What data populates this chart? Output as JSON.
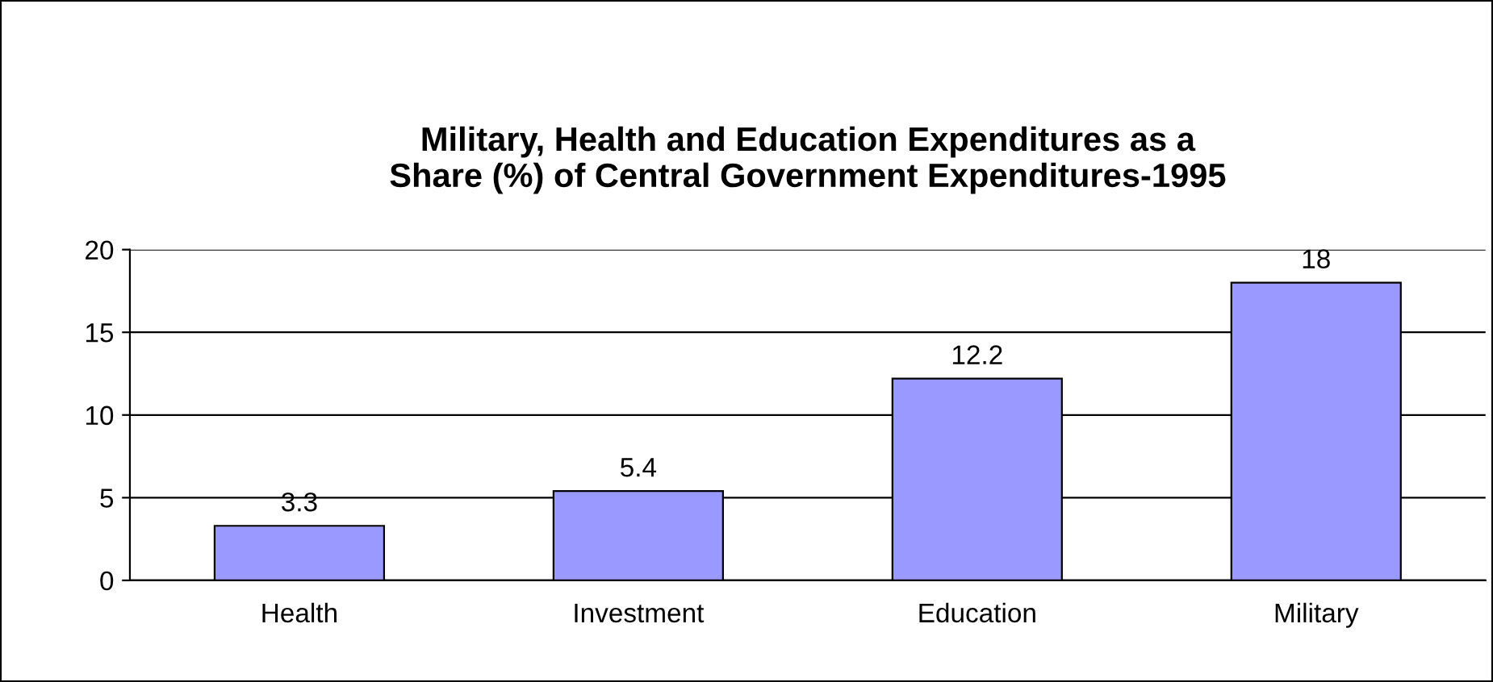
{
  "chart_data": {
    "type": "bar",
    "title": "Military, Health and Education Expenditures as a\nShare (%) of Central Government Expenditures-1995",
    "categories": [
      "Health",
      "Investment",
      "Education",
      "Military"
    ],
    "values": [
      3.3,
      5.4,
      12.2,
      18
    ],
    "color": "#9999ff",
    "ylim": [
      0,
      20
    ],
    "yticks": [
      0,
      5,
      10,
      15,
      20
    ],
    "grid": "y",
    "data_labels": true,
    "legend": false
  }
}
